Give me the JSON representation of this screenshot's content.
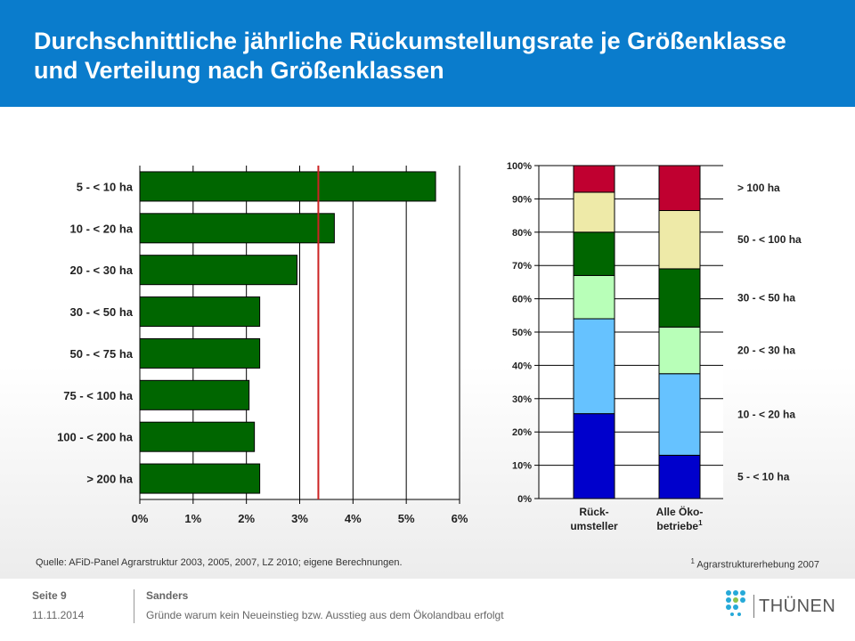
{
  "title": "Durchschnittliche jährliche Rückumstellungsrate je Größenklasse und Verteilung nach Größenklassen",
  "source": "Quelle:  AFiD-Panel Agrarstruktur 2003, 2005, 2007, LZ 2010; eigene Berechnungen.",
  "footnote_mark": "1",
  "footnote": "Agrarstrukturerhebung 2007",
  "footer": {
    "page": "Seite 9",
    "date": "11.11.2014",
    "author": "Sanders",
    "subtitle": "Gründe warum kein Neueinstieg bzw. Ausstieg aus dem Ökolandbau erfolgt"
  },
  "logo_text": "THÜNEN",
  "colors": {
    "header": "#0a7ccc",
    "bar_green": "#006600",
    "reference_line": "#cc2222",
    "seg_5_10": "#0000cc",
    "seg_10_20": "#66c2ff",
    "seg_20_30": "#b8ffb8",
    "seg_30_50": "#006600",
    "seg_50_100": "#eeeaa8",
    "seg_100": "#c00030"
  },
  "chart_data": [
    {
      "type": "bar",
      "orientation": "horizontal",
      "categories": [
        "5 - < 10 ha",
        "10 - < 20 ha",
        "20 - < 30 ha",
        "30 - < 50 ha",
        "50 - < 75 ha",
        "75 - < 100 ha",
        "100 - < 200 ha",
        "> 200 ha"
      ],
      "values": [
        5.55,
        3.65,
        2.95,
        2.25,
        2.25,
        2.05,
        2.15,
        2.25
      ],
      "unit": "%",
      "xlim": [
        0,
        6
      ],
      "x_ticks": [
        "0%",
        "1%",
        "2%",
        "3%",
        "4%",
        "5%",
        "6%"
      ],
      "reference_line": 3.35,
      "grid": "vertical"
    },
    {
      "type": "bar",
      "stacked": true,
      "categories": [
        "Rück-\numsteller",
        "Alle Öko-\nbetriebe"
      ],
      "category_superscripts": [
        "",
        "1"
      ],
      "series": [
        {
          "name": "5 - < 10 ha",
          "values": [
            25.5,
            13
          ]
        },
        {
          "name": "10 - < 20 ha",
          "values": [
            28.5,
            24.5
          ]
        },
        {
          "name": "20 - < 30 ha",
          "values": [
            13,
            14
          ]
        },
        {
          "name": "30 - < 50 ha",
          "values": [
            13,
            17.5
          ]
        },
        {
          "name": "50 - < 100 ha",
          "values": [
            12,
            17.5
          ]
        },
        {
          "name": "> 100 ha",
          "values": [
            8,
            13.5
          ]
        }
      ],
      "ylim": [
        0,
        100
      ],
      "y_ticks": [
        "0%",
        "10%",
        "20%",
        "30%",
        "40%",
        "50%",
        "60%",
        "70%",
        "80%",
        "90%",
        "100%"
      ],
      "legend_placement": "right",
      "grid": "horizontal"
    }
  ]
}
